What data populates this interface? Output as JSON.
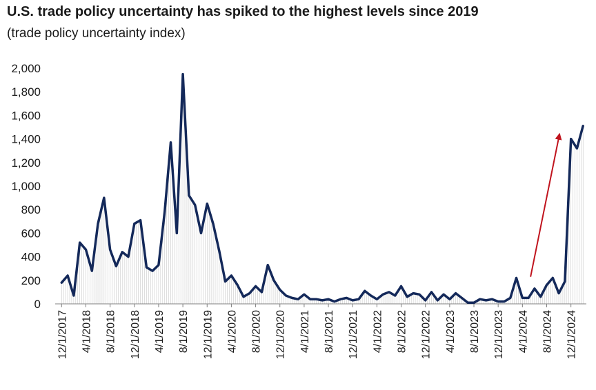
{
  "title": "U.S. trade policy uncertainty has spiked to the highest levels since 2019",
  "subtitle": "(trade policy uncertainty index)",
  "chart_data": {
    "type": "line",
    "title": "U.S. trade policy uncertainty has spiked to the highest levels since 2019",
    "subtitle": "(trade policy uncertainty index)",
    "xlabel": "",
    "ylabel": "",
    "ylim": [
      0,
      2000
    ],
    "y_ticks": [
      "0",
      "200",
      "400",
      "600",
      "800",
      "1,000",
      "1,200",
      "1,400",
      "1,600",
      "1,800",
      "2,000"
    ],
    "x_tick_labels": [
      "12/1/2017",
      "4/1/2018",
      "8/1/2018",
      "12/1/2018",
      "4/1/2019",
      "8/1/2019",
      "12/1/2019",
      "4/1/2020",
      "8/1/2020",
      "12/1/2020",
      "4/1/2021",
      "8/1/2021",
      "12/1/2021",
      "4/1/2022",
      "8/1/2022",
      "12/1/2022",
      "4/1/2023",
      "8/1/2023",
      "12/1/2023",
      "4/1/2024",
      "8/1/2024",
      "12/1/2024"
    ],
    "grid": false,
    "fill": "vertical hatch under line",
    "colors": {
      "line": "#14295a",
      "hatch": "#c8c8c8",
      "arrow": "#c0141e"
    },
    "series": [
      {
        "x": [
          "12/1/2017",
          "1/1/2018",
          "2/1/2018",
          "3/1/2018",
          "4/1/2018",
          "5/1/2018",
          "6/1/2018",
          "7/1/2018",
          "8/1/2018",
          "9/1/2018",
          "10/1/2018",
          "11/1/2018",
          "12/1/2018",
          "1/1/2019",
          "2/1/2019",
          "3/1/2019",
          "4/1/2019",
          "5/1/2019",
          "6/1/2019",
          "7/1/2019",
          "8/1/2019",
          "9/1/2019",
          "10/1/2019",
          "11/1/2019",
          "12/1/2019",
          "1/1/2020",
          "2/1/2020",
          "3/1/2020",
          "4/1/2020",
          "5/1/2020",
          "6/1/2020",
          "7/1/2020",
          "8/1/2020",
          "9/1/2020",
          "10/1/2020",
          "11/1/2020",
          "12/1/2020",
          "1/1/2021",
          "2/1/2021",
          "3/1/2021",
          "4/1/2021",
          "5/1/2021",
          "6/1/2021",
          "7/1/2021",
          "8/1/2021",
          "9/1/2021",
          "10/1/2021",
          "11/1/2021",
          "12/1/2021",
          "1/1/2022",
          "2/1/2022",
          "3/1/2022",
          "4/1/2022",
          "5/1/2022",
          "6/1/2022",
          "7/1/2022",
          "8/1/2022",
          "9/1/2022",
          "10/1/2022",
          "11/1/2022",
          "12/1/2022",
          "1/1/2023",
          "2/1/2023",
          "3/1/2023",
          "4/1/2023",
          "5/1/2023",
          "6/1/2023",
          "7/1/2023",
          "8/1/2023",
          "9/1/2023",
          "10/1/2023",
          "11/1/2023",
          "12/1/2023",
          "1/1/2024",
          "2/1/2024",
          "3/1/2024",
          "4/1/2024",
          "5/1/2024",
          "6/1/2024",
          "7/1/2024",
          "8/1/2024",
          "9/1/2024",
          "10/1/2024",
          "11/1/2024",
          "12/1/2024",
          "1/1/2025",
          "2/1/2025"
        ],
        "values": [
          180,
          240,
          70,
          520,
          460,
          280,
          680,
          900,
          460,
          320,
          440,
          400,
          680,
          710,
          310,
          280,
          330,
          780,
          1370,
          600,
          1950,
          920,
          840,
          600,
          850,
          680,
          450,
          190,
          240,
          160,
          60,
          90,
          150,
          100,
          330,
          200,
          120,
          70,
          50,
          40,
          80,
          40,
          40,
          30,
          40,
          20,
          40,
          50,
          30,
          40,
          110,
          70,
          40,
          80,
          100,
          70,
          150,
          60,
          90,
          80,
          30,
          100,
          30,
          80,
          40,
          90,
          50,
          10,
          10,
          40,
          30,
          40,
          20,
          20,
          50,
          220,
          50,
          50,
          130,
          60,
          160,
          220,
          90,
          190,
          1400,
          1320,
          1510
        ]
      }
    ],
    "annotation": {
      "type": "arrow",
      "from_x": "5/1/2024",
      "from_y": 230,
      "to_x": "10/1/2024",
      "to_y": 1440
    }
  }
}
